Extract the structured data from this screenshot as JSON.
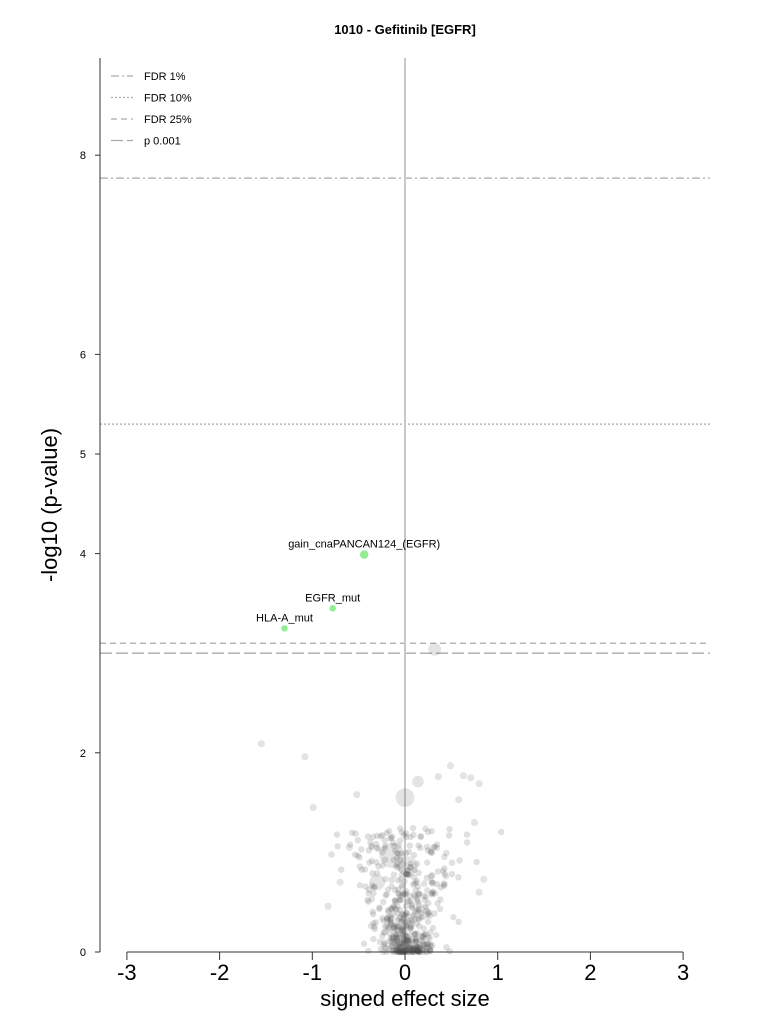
{
  "chart_data": {
    "type": "scatter",
    "title": "1010 - Gefitinib [EGFR]",
    "xlabel": "signed effect size",
    "ylabel": "-log10 (p-value)",
    "xlim": [
      -3.25,
      3.3
    ],
    "ylim": [
      0,
      8.98
    ],
    "x_ticks": [
      -3,
      -2,
      -1,
      0,
      1,
      2,
      3
    ],
    "y_ticks": [
      0,
      2,
      4,
      5,
      6,
      8
    ],
    "grid": false,
    "legend_position": "top-left",
    "legend": [
      {
        "label": "FDR 1%",
        "style": "dashdot"
      },
      {
        "label": "FDR 10%",
        "style": "dotted"
      },
      {
        "label": "FDR 25%",
        "style": "dashed"
      },
      {
        "label": "p 0.001",
        "style": "longdash"
      }
    ],
    "thresholds": [
      {
        "label": "FDR 1%",
        "y": 7.77,
        "style": "dashdot"
      },
      {
        "label": "FDR 10%",
        "y": 5.3,
        "style": "dotted"
      },
      {
        "label": "FDR 25%",
        "y": 3.1,
        "style": "dashed"
      },
      {
        "label": "p 0.001",
        "y": 3.0,
        "style": "longdash"
      }
    ],
    "highlight_color": "#90ee90",
    "background_point_color": "#555555",
    "highlighted_points": [
      {
        "label": "gain_cnaPANCAN124_(EGFR)",
        "x": -0.44,
        "y": 3.99
      },
      {
        "label": "EGFR_mut",
        "x": -0.78,
        "y": 3.45
      },
      {
        "label": "HLA-A_mut",
        "x": -1.3,
        "y": 3.25
      }
    ],
    "background_points": [
      {
        "x": 0.32,
        "y": 3.04,
        "size": 1.8
      },
      {
        "x": -1.55,
        "y": 2.09,
        "size": 1.0
      },
      {
        "x": -1.08,
        "y": 1.96,
        "size": 1.0
      },
      {
        "x": -0.99,
        "y": 1.45,
        "size": 1.0
      },
      {
        "x": 0.0,
        "y": 1.55,
        "size": 2.6
      },
      {
        "x": 0.14,
        "y": 1.71,
        "size": 1.6
      },
      {
        "x": 0.49,
        "y": 1.87,
        "size": 1.0
      },
      {
        "x": 0.36,
        "y": 1.76,
        "size": 1.0
      },
      {
        "x": 0.63,
        "y": 1.77,
        "size": 1.0
      },
      {
        "x": 0.71,
        "y": 1.75,
        "size": 1.0
      },
      {
        "x": 0.8,
        "y": 1.69,
        "size": 1.0
      },
      {
        "x": -0.52,
        "y": 1.58,
        "size": 1.0
      },
      {
        "x": 0.58,
        "y": 1.53,
        "size": 1.0
      },
      {
        "x": -0.14,
        "y": 0.97,
        "size": 3.5
      },
      {
        "x": 0.03,
        "y": 0.86,
        "size": 2.8
      },
      {
        "x": -0.3,
        "y": 0.7,
        "size": 2.2
      },
      {
        "x": 0.2,
        "y": 0.4,
        "size": 2.0
      },
      {
        "x": -0.1,
        "y": 0.1,
        "size": 2.0
      },
      {
        "x": 0.85,
        "y": 0.73,
        "size": 1.0
      },
      {
        "x": -0.83,
        "y": 0.46,
        "size": 1.0
      },
      {
        "x": -0.7,
        "y": 0.7,
        "size": 1.0
      },
      {
        "x": -0.6,
        "y": 1.05,
        "size": 1.0
      },
      {
        "x": 0.75,
        "y": 1.3,
        "size": 1.0
      },
      {
        "x": 0.8,
        "y": 0.6,
        "size": 1.0
      }
    ]
  }
}
